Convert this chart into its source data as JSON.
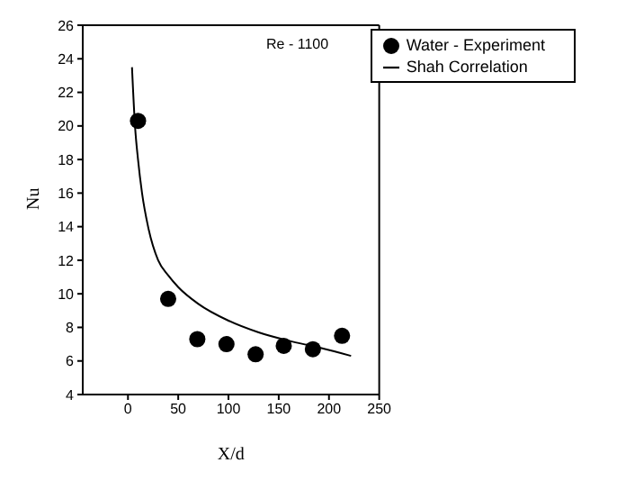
{
  "chart_data": {
    "type": "scatter",
    "xlabel": "X/d",
    "ylabel": "Nu",
    "annotations": [
      "Re - 1100"
    ],
    "xlim": [
      -45,
      250
    ],
    "xticks": [
      0,
      50,
      100,
      150,
      200,
      250
    ],
    "ylim": [
      4,
      26
    ],
    "yticks": [
      4,
      6,
      8,
      10,
      12,
      14,
      16,
      18,
      20,
      22,
      24,
      26
    ],
    "grid": false,
    "legend": "top right",
    "marker": "circle",
    "series": [
      {
        "name": "Water - Experiment",
        "color": "#000000",
        "x": [
          10,
          40,
          69,
          98,
          127,
          155,
          184,
          213
        ],
        "values": [
          20.3,
          9.7,
          7.3,
          7.0,
          6.4,
          6.9,
          6.7,
          7.5
        ]
      },
      {
        "name": "Shah Correlation",
        "type": "line",
        "color": "#000000",
        "marker": "none",
        "line_style": "solid",
        "x": [
          4,
          7,
          10,
          14,
          20,
          30,
          40,
          50,
          70,
          100,
          130,
          160,
          190,
          222
        ],
        "values": [
          23.5,
          20.0,
          18.0,
          16.0,
          14.0,
          12.0,
          11.1,
          10.4,
          9.4,
          8.4,
          7.7,
          7.2,
          6.8,
          6.3
        ]
      }
    ]
  }
}
